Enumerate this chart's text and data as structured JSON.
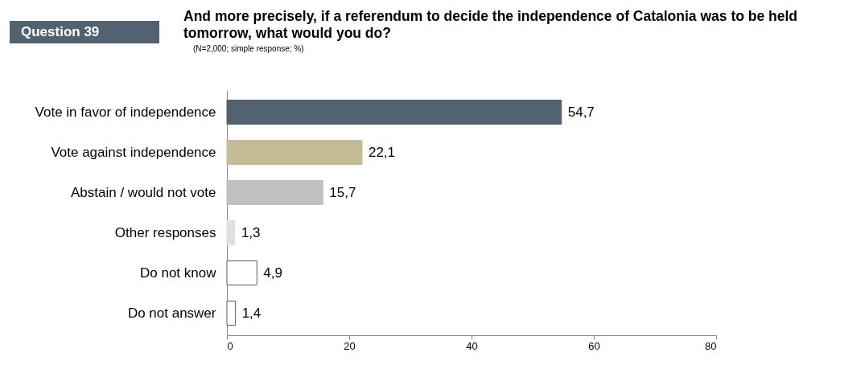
{
  "chart_data": {
    "type": "bar",
    "orientation": "horizontal",
    "title": "And more precisely, if a referendum to decide the independence of Catalonia was to be held tomorrow, what would you do?",
    "subtitle": "(N=2,000; simple response; %)",
    "annotations": [
      "Question 39"
    ],
    "categories": [
      "Vote in favor of independence",
      "Vote against independence",
      "Abstain / would not vote",
      "Other responses",
      "Do not know",
      "Do not answer"
    ],
    "values": [
      54.7,
      22.1,
      15.7,
      1.3,
      4.9,
      1.4
    ],
    "value_labels": [
      "54,7",
      "22,1",
      "15,7",
      "1,3",
      "4,9",
      "1,4"
    ],
    "colors": [
      "#536270",
      "#c4bb97",
      "#c0c0c0",
      "#e0e0e0",
      "#ffffff",
      "#ffffff"
    ],
    "xlim": [
      0,
      80
    ],
    "xticks": [
      0,
      20,
      40,
      60,
      80
    ],
    "grid": false
  }
}
